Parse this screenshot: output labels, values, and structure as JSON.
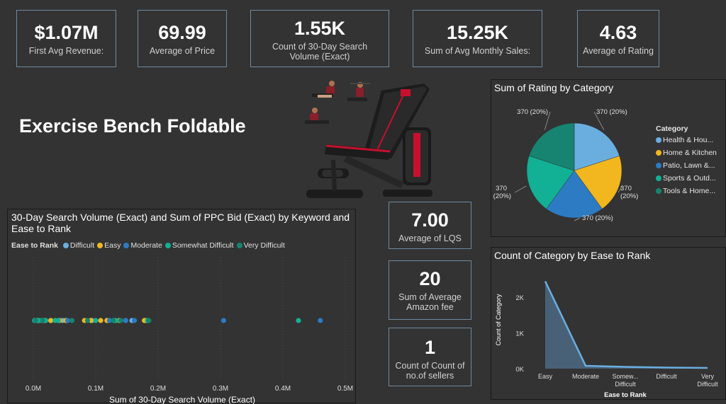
{
  "kpis": [
    {
      "value": "$1.07M",
      "label": "First Avg Revenue:"
    },
    {
      "value": "69.99",
      "label": "Average of Price"
    },
    {
      "value": "1.55K",
      "label": "Count of 30-Day Search Volume (Exact)"
    },
    {
      "value": "15.25K",
      "label": "Sum of Avg Monthly Sales:"
    },
    {
      "value": "4.63",
      "label": "Average of Rating"
    }
  ],
  "kpis2": [
    {
      "value": "7.00",
      "label": "Average of LQS"
    },
    {
      "value": "20",
      "label": "Sum of Average Amazon fee"
    },
    {
      "value": "1",
      "label": "Count of Count of no.of sellers"
    }
  ],
  "page_title": "Exercise Bench Foldable",
  "colors": {
    "difficult": "#6aaee0",
    "easy": "#f2b71e",
    "moderate": "#2c7bc3",
    "somewhat_difficult": "#12b094",
    "very_difficult": "#168470"
  },
  "chart_data": [
    {
      "type": "pie",
      "title": "Sum of Rating by Category",
      "legend_title": "Category",
      "legend_position": "right",
      "categories": [
        "Health & Hou...",
        "Home & Kitchen",
        "Patio, Lawn &...",
        "Sports & Outd...",
        "Tools & Home..."
      ],
      "values": [
        370,
        370,
        370,
        370,
        370
      ],
      "data_labels": [
        "370 (20%)",
        "370 (20%)",
        "370 (20%)",
        "370 (20%)",
        "370 (20%)"
      ],
      "colors": [
        "#6aaee0",
        "#f2b71e",
        "#2c7bc3",
        "#12b094",
        "#168470"
      ]
    },
    {
      "type": "scatter",
      "title": "30-Day Search Volume (Exact) and Sum of PPC Bid (Exact) by Keyword and Ease to Rank",
      "xlabel": "Sum of 30-Day Search Volume (Exact)",
      "legend_title": "Ease to Rank",
      "legend_position": "top",
      "xticks": [
        "0.0M",
        "0.1M",
        "0.2M",
        "0.3M",
        "0.4M",
        "0.5M"
      ],
      "xlim": [
        0,
        0.5
      ],
      "grid": true,
      "series": [
        {
          "name": "Difficult",
          "x": [
            0.005,
            0.013,
            0.028,
            0.047,
            0.094,
            0.118,
            0.148,
            0.158,
            0.18
          ]
        },
        {
          "name": "Easy",
          "x": [
            0.007,
            0.017,
            0.028,
            0.042,
            0.052,
            0.082,
            0.092,
            0.108,
            0.118,
            0.138,
            0.178
          ]
        },
        {
          "name": "Moderate",
          "x": [
            0.012,
            0.055,
            0.122,
            0.148,
            0.162,
            0.305,
            0.46
          ]
        },
        {
          "name": "Somewhat Difficult",
          "x": [
            0.002,
            0.009,
            0.02,
            0.035,
            0.04,
            0.1,
            0.13,
            0.132,
            0.183,
            0.425
          ]
        },
        {
          "name": "Very Difficult",
          "x": [
            0.004,
            0.015,
            0.062,
            0.087,
            0.128,
            0.14,
            0.185
          ]
        }
      ]
    },
    {
      "type": "area",
      "title": "Count of Category by Ease to Rank",
      "xlabel": "Ease to Rank",
      "ylabel": "Count of Category",
      "categories": [
        "Easy",
        "Moderate",
        "Somewhat Difficult",
        "Difficult",
        "Very Difficult"
      ],
      "category_labels": [
        [
          "Easy"
        ],
        [
          "Moderate"
        ],
        [
          "Somew...",
          "Difficult"
        ],
        [
          "Difficult"
        ],
        [
          "Very",
          "Difficult"
        ]
      ],
      "values": [
        2450,
        80,
        50,
        30,
        20
      ],
      "yticks": [
        "0K",
        "1K",
        "2K"
      ],
      "ylim": [
        0,
        2600
      ]
    }
  ]
}
